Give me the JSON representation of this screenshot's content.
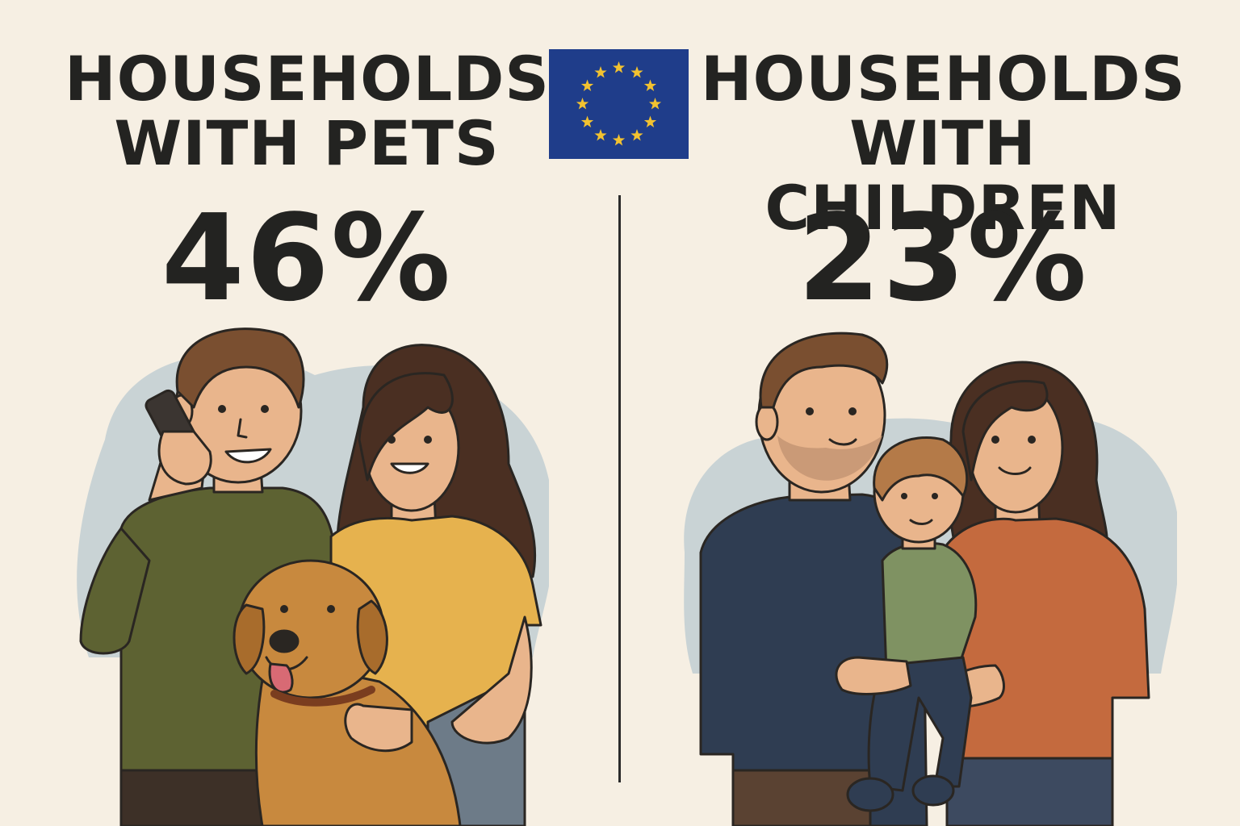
{
  "left_panel": {
    "title_line1": "HOUSEHOLDS",
    "title_line2": "WITH PETS",
    "percentage": "46%"
  },
  "right_panel": {
    "title_line1": "HOUSEHOLDS",
    "title_line2": "WITH CHILDREN",
    "percentage": "23%"
  },
  "center": {
    "flag_icon": "eu-flag-icon"
  },
  "colors": {
    "background": "#f6efe3",
    "text": "#232321",
    "flag_blue": "#1f3d8a",
    "flag_stars": "#f2c230",
    "blob": "#c9d3d5"
  }
}
